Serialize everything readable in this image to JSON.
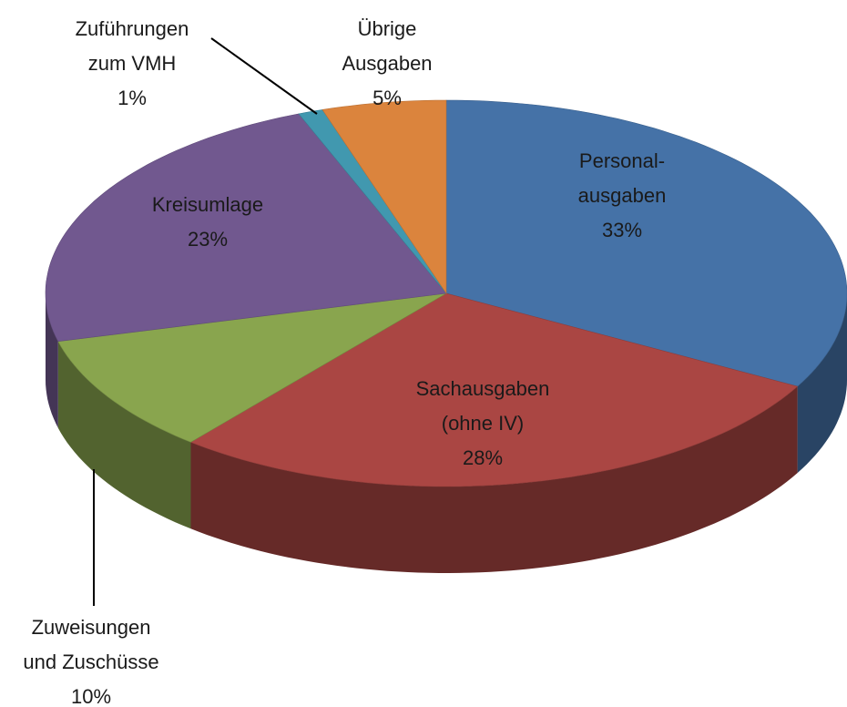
{
  "chart_data": {
    "type": "pie",
    "categories": [
      "Personal-\nausgaben",
      "Sachausgaben\n(ohne IV)",
      "Zuweisungen\nund Zuschüsse",
      "Kreisumlage",
      "Zuführungen\nzum VMH",
      "Übrige\nAusgaben"
    ],
    "values": [
      33,
      28,
      10,
      23,
      1,
      5
    ],
    "value_labels": [
      "33%",
      "28%",
      "10%",
      "23%",
      "1%",
      "5%"
    ],
    "colors": [
      "#4572a7",
      "#aa4643",
      "#89a54e",
      "#71588f",
      "#4198af",
      "#db843d"
    ]
  }
}
